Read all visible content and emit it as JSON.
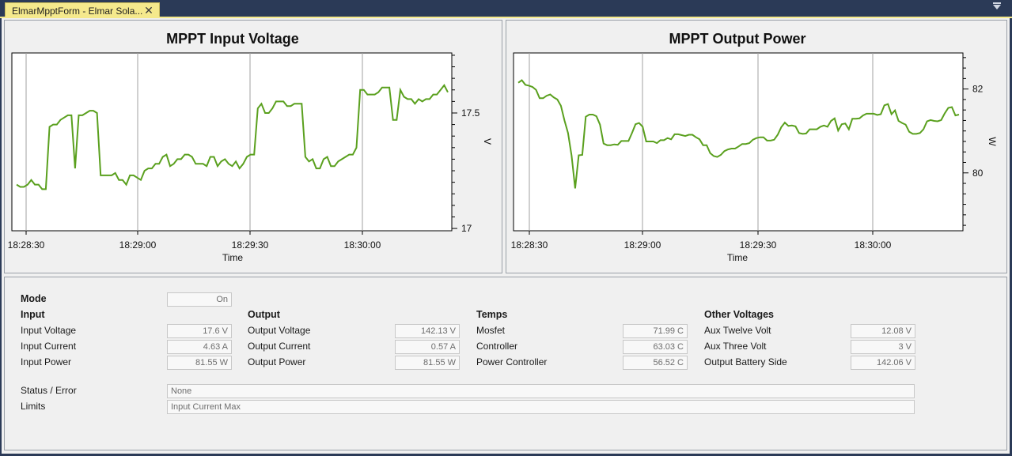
{
  "tab": {
    "title": "ElmarMpptForm - Elmar Sola..."
  },
  "input_chart": {
    "title": "MPPT Input Voltage",
    "xlabel": "Time",
    "ylabel": "V",
    "x_ticks": [
      "18:28:30",
      "18:29:00",
      "18:29:30",
      "18:30:00"
    ],
    "y_ticks": [
      "17",
      "17.5"
    ]
  },
  "output_chart": {
    "title": "MPPT Output Power",
    "xlabel": "Time",
    "ylabel": "W",
    "x_ticks": [
      "18:28:30",
      "18:29:00",
      "18:29:30",
      "18:30:00"
    ],
    "y_ticks": [
      "80",
      "82"
    ]
  },
  "chart_data": [
    {
      "type": "line",
      "title": "MPPT Input Voltage",
      "xlabel": "Time",
      "ylabel": "V",
      "x_ticks": [
        "18:28:30",
        "18:29:00",
        "18:29:30",
        "18:30:00"
      ],
      "ylim": [
        16.99,
        17.76
      ],
      "series_color": "#5aa01e",
      "values": [
        17.19,
        17.18,
        17.18,
        17.19,
        17.21,
        17.19,
        17.19,
        17.17,
        17.17,
        17.44,
        17.45,
        17.45,
        17.47,
        17.48,
        17.49,
        17.49,
        17.26,
        17.49,
        17.49,
        17.5,
        17.51,
        17.51,
        17.5,
        17.23,
        17.23,
        17.23,
        17.23,
        17.24,
        17.21,
        17.21,
        17.19,
        17.23,
        17.23,
        17.22,
        17.21,
        17.25,
        17.26,
        17.26,
        17.28,
        17.28,
        17.31,
        17.32,
        17.27,
        17.28,
        17.3,
        17.3,
        17.32,
        17.32,
        17.31,
        17.28,
        17.28,
        17.28,
        17.27,
        17.31,
        17.31,
        17.27,
        17.29,
        17.3,
        17.28,
        17.27,
        17.29,
        17.26,
        17.28,
        17.31,
        17.32,
        17.32,
        17.52,
        17.54,
        17.5,
        17.5,
        17.52,
        17.55,
        17.55,
        17.55,
        17.53,
        17.53,
        17.54,
        17.54,
        17.54,
        17.31,
        17.29,
        17.3,
        17.26,
        17.26,
        17.3,
        17.31,
        17.27,
        17.27,
        17.29,
        17.3,
        17.31,
        17.32,
        17.32,
        17.35,
        17.6,
        17.6,
        17.58,
        17.58,
        17.58,
        17.59,
        17.61,
        17.61,
        17.61,
        17.47,
        17.47,
        17.6,
        17.57,
        17.56,
        17.56,
        17.54,
        17.56,
        17.55,
        17.56,
        17.56,
        17.58,
        17.58,
        17.6,
        17.62,
        17.59
      ]
    },
    {
      "type": "line",
      "title": "MPPT Output Power",
      "xlabel": "Time",
      "ylabel": "W",
      "x_ticks": [
        "18:28:30",
        "18:29:00",
        "18:29:30",
        "18:30:00"
      ],
      "ylim": [
        78.62,
        82.86
      ],
      "series_color": "#5aa01e",
      "values": [
        82.15,
        82.21,
        82.1,
        82.08,
        82.05,
        81.98,
        81.78,
        81.78,
        81.84,
        81.87,
        81.8,
        81.75,
        81.6,
        81.25,
        80.95,
        80.41,
        79.63,
        80.42,
        80.43,
        81.34,
        81.39,
        81.39,
        81.35,
        81.15,
        80.7,
        80.66,
        80.66,
        80.68,
        80.67,
        80.76,
        80.76,
        80.76,
        80.95,
        81.16,
        81.19,
        81.1,
        80.75,
        80.75,
        80.75,
        80.71,
        80.78,
        80.78,
        80.83,
        80.8,
        80.92,
        80.92,
        80.9,
        80.88,
        80.91,
        80.91,
        80.85,
        80.8,
        80.66,
        80.66,
        80.47,
        80.4,
        80.38,
        80.43,
        80.52,
        80.56,
        80.58,
        80.58,
        80.63,
        80.69,
        80.69,
        80.71,
        80.79,
        80.83,
        80.85,
        80.85,
        80.77,
        80.77,
        80.79,
        80.91,
        81.09,
        81.2,
        81.12,
        81.13,
        81.11,
        80.95,
        80.93,
        80.94,
        81.04,
        81.04,
        81.04,
        81.1,
        81.13,
        81.1,
        81.24,
        81.3,
        81.01,
        81.16,
        81.18,
        81.04,
        81.29,
        81.29,
        81.3,
        81.37,
        81.41,
        81.41,
        81.41,
        81.38,
        81.4,
        81.61,
        81.64,
        81.4,
        81.49,
        81.24,
        81.19,
        81.15,
        80.98,
        80.93,
        80.93,
        80.95,
        81.04,
        81.23,
        81.26,
        81.24,
        81.23,
        81.26,
        81.42,
        81.55,
        81.57,
        81.37,
        81.39
      ]
    }
  ],
  "mode": {
    "label": "Mode",
    "value": "On"
  },
  "input": {
    "header": "Input",
    "rows": [
      {
        "label": "Input Voltage",
        "value": "17.6 V"
      },
      {
        "label": "Input Current",
        "value": "4.63 A"
      },
      {
        "label": "Input Power",
        "value": "81.55 W"
      }
    ]
  },
  "output": {
    "header": "Output",
    "rows": [
      {
        "label": "Output Voltage",
        "value": "142.13 V"
      },
      {
        "label": "Output Current",
        "value": "0.57 A"
      },
      {
        "label": "Output Power",
        "value": "81.55 W"
      }
    ]
  },
  "temps": {
    "header": "Temps",
    "rows": [
      {
        "label": "Mosfet",
        "value": "71.99 C"
      },
      {
        "label": "Controller",
        "value": "63.03 C"
      },
      {
        "label": "Power Controller",
        "value": "56.52 C"
      }
    ]
  },
  "other": {
    "header": "Other Voltages",
    "rows": [
      {
        "label": "Aux Twelve Volt",
        "value": "12.08 V"
      },
      {
        "label": "Aux Three Volt",
        "value": "3 V"
      },
      {
        "label": "Output Battery Side",
        "value": "142.06 V"
      }
    ]
  },
  "status": {
    "label": "Status / Error",
    "value": "None"
  },
  "limits": {
    "label": "Limits",
    "value": "Input Current Max"
  }
}
